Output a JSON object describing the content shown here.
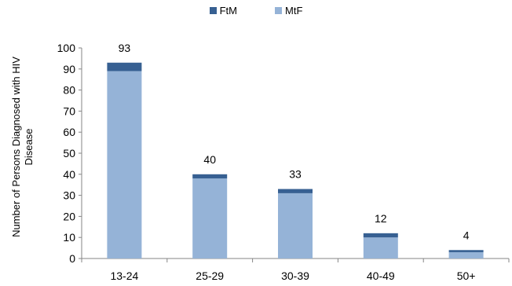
{
  "chart_data": {
    "type": "bar",
    "stacked": true,
    "categories": [
      "13-24",
      "25-29",
      "30-39",
      "40-49",
      "50+"
    ],
    "series": [
      {
        "name": "MtF",
        "values": [
          89,
          38,
          31,
          10,
          3
        ],
        "color": "#95B3D7"
      },
      {
        "name": "FtM",
        "values": [
          4,
          2,
          2,
          2,
          1
        ],
        "color": "#376092"
      }
    ],
    "totals": [
      "93",
      "40",
      "33",
      "12",
      "4"
    ],
    "ylabel": "Number of Persons Diagnosed with HIV Disease",
    "ylim": [
      0,
      100
    ],
    "yticks": [
      "0",
      "10",
      "20",
      "30",
      "40",
      "50",
      "60",
      "70",
      "80",
      "90",
      "100"
    ],
    "legend_position": "top-center",
    "grid": false
  }
}
